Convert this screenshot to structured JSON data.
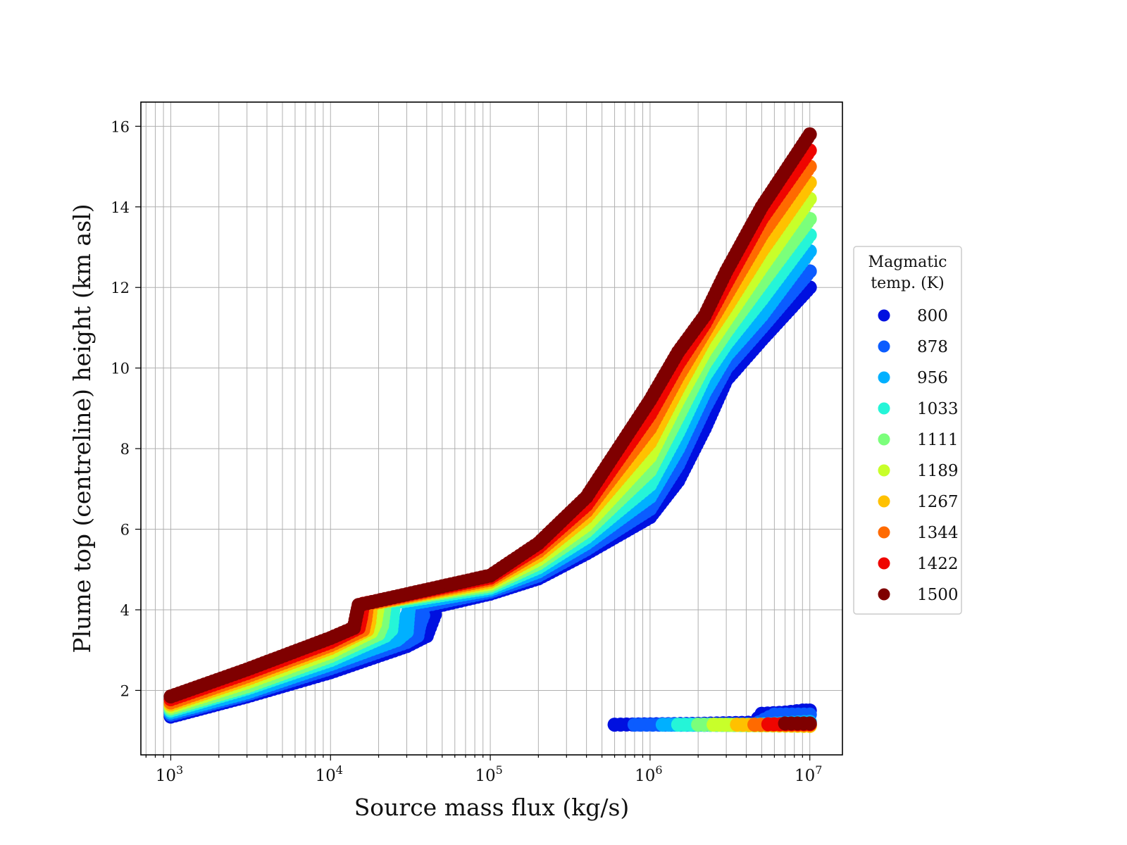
{
  "chart_data": {
    "type": "scatter",
    "title": "",
    "xlabel": "Source mass flux (kg/s)",
    "ylabel": "Plume top (centreline) height (km asl)",
    "xscale": "log",
    "xlim": [
      650,
      16000000
    ],
    "ylim": [
      0.4,
      16.6
    ],
    "x_ticks": [
      {
        "value": 1000,
        "base": "10",
        "exp": "3"
      },
      {
        "value": 10000,
        "base": "10",
        "exp": "4"
      },
      {
        "value": 100000,
        "base": "10",
        "exp": "5"
      },
      {
        "value": 1000000,
        "base": "10",
        "exp": "6"
      },
      {
        "value": 10000000,
        "base": "10",
        "exp": "7"
      }
    ],
    "y_ticks": [
      2,
      4,
      6,
      8,
      10,
      12,
      14,
      16
    ],
    "grid": true,
    "legend": {
      "title_lines": [
        "Magmatic",
        "temp. (K)"
      ],
      "placement": "outside-right"
    },
    "series": [
      {
        "name": "800",
        "color": "#0010e0",
        "main": [
          [
            1000,
            1.35
          ],
          [
            3000,
            1.85
          ],
          [
            10000,
            2.45
          ],
          [
            30000,
            3.1
          ],
          [
            40000,
            3.35
          ],
          [
            45000,
            4.08
          ],
          [
            100000,
            4.4
          ],
          [
            200000,
            4.78
          ],
          [
            400000,
            5.4
          ],
          [
            1000000,
            6.3
          ],
          [
            1500000,
            7.2
          ],
          [
            2200000,
            8.5
          ],
          [
            3000000,
            9.7
          ],
          [
            5000000,
            10.7
          ],
          [
            10000000,
            12.0
          ]
        ],
        "branches": [
          {
            "points": [
              [
                40000,
                3.35
              ],
              [
                45000,
                3.88
              ]
            ]
          }
        ],
        "lower": [
          [
            600000,
            1.15
          ],
          [
            2000000,
            1.17
          ],
          [
            4500000,
            1.2
          ],
          [
            5000000,
            1.42
          ],
          [
            7000000,
            1.45
          ],
          [
            9000000,
            1.5
          ],
          [
            10000000,
            1.5
          ]
        ]
      },
      {
        "name": "878",
        "color": "#0b5cff",
        "main": [
          [
            1000,
            1.4
          ],
          [
            3000,
            1.9
          ],
          [
            10000,
            2.55
          ],
          [
            30000,
            3.2
          ],
          [
            35000,
            3.35
          ],
          [
            38000,
            4.1
          ],
          [
            100000,
            4.45
          ],
          [
            200000,
            4.85
          ],
          [
            400000,
            5.5
          ],
          [
            1000000,
            6.5
          ],
          [
            1500000,
            7.6
          ],
          [
            2200000,
            9.0
          ],
          [
            3000000,
            10.0
          ],
          [
            5000000,
            11.0
          ],
          [
            10000000,
            12.4
          ]
        ],
        "branches": [
          {
            "points": [
              [
                34000,
                3.35
              ],
              [
                38000,
                3.86
              ]
            ]
          }
        ],
        "lower": [
          [
            800000,
            1.15
          ],
          [
            2500000,
            1.15
          ],
          [
            4500000,
            1.15
          ],
          [
            6000000,
            1.4
          ],
          [
            10000000,
            1.4
          ]
        ]
      },
      {
        "name": "956",
        "color": "#00b0ff",
        "main": [
          [
            1000,
            1.45
          ],
          [
            3000,
            1.95
          ],
          [
            10000,
            2.65
          ],
          [
            26000,
            3.25
          ],
          [
            30000,
            3.45
          ],
          [
            31000,
            4.15
          ],
          [
            100000,
            4.5
          ],
          [
            200000,
            4.95
          ],
          [
            400000,
            5.65
          ],
          [
            1000000,
            6.8
          ],
          [
            1500000,
            8.0
          ],
          [
            2200000,
            9.4
          ],
          [
            3000000,
            10.3
          ],
          [
            5000000,
            11.3
          ],
          [
            10000000,
            12.9
          ]
        ],
        "branches": [
          {
            "points": [
              [
                27000,
                3.3
              ],
              [
                30000,
                3.86
              ]
            ]
          }
        ],
        "lower": [
          [
            1200000,
            1.15
          ],
          [
            4000000,
            1.14
          ],
          [
            10000000,
            1.22
          ]
        ]
      },
      {
        "name": "1033",
        "color": "#25f5d8",
        "main": [
          [
            1000,
            1.5
          ],
          [
            3000,
            2.05
          ],
          [
            10000,
            2.75
          ],
          [
            22000,
            3.35
          ],
          [
            24000,
            3.5
          ],
          [
            25000,
            4.18
          ],
          [
            100000,
            4.55
          ],
          [
            200000,
            5.05
          ],
          [
            400000,
            5.8
          ],
          [
            1000000,
            7.1
          ],
          [
            1500000,
            8.4
          ],
          [
            2200000,
            9.8
          ],
          [
            3000000,
            10.6
          ],
          [
            5000000,
            11.7
          ],
          [
            10000000,
            13.3
          ]
        ],
        "branches": [],
        "lower": [
          [
            1500000,
            1.15
          ],
          [
            10000000,
            1.15
          ]
        ]
      },
      {
        "name": "1111",
        "color": "#7bff7b",
        "main": [
          [
            1000,
            1.55
          ],
          [
            3000,
            2.1
          ],
          [
            10000,
            2.85
          ],
          [
            20000,
            3.4
          ],
          [
            21000,
            3.6
          ],
          [
            22000,
            4.2
          ],
          [
            100000,
            4.6
          ],
          [
            200000,
            5.15
          ],
          [
            400000,
            5.95
          ],
          [
            1000000,
            7.45
          ],
          [
            1500000,
            8.8
          ],
          [
            2200000,
            10.1
          ],
          [
            3000000,
            10.9
          ],
          [
            5000000,
            12.1
          ],
          [
            10000000,
            13.7
          ]
        ],
        "branches": [],
        "lower": [
          [
            2000000,
            1.15
          ],
          [
            10000000,
            1.12
          ]
        ]
      },
      {
        "name": "1189",
        "color": "#c8ff2a",
        "main": [
          [
            1000,
            1.6
          ],
          [
            3000,
            2.2
          ],
          [
            10000,
            2.95
          ],
          [
            18000,
            3.45
          ],
          [
            19000,
            3.65
          ],
          [
            20000,
            4.2
          ],
          [
            100000,
            4.65
          ],
          [
            200000,
            5.25
          ],
          [
            400000,
            6.1
          ],
          [
            1000000,
            7.8
          ],
          [
            1500000,
            9.2
          ],
          [
            2200000,
            10.4
          ],
          [
            3000000,
            11.2
          ],
          [
            5000000,
            12.5
          ],
          [
            10000000,
            14.2
          ]
        ],
        "branches": [],
        "lower": [
          [
            2500000,
            1.15
          ],
          [
            10000000,
            1.12
          ]
        ]
      },
      {
        "name": "1267",
        "color": "#ffc100",
        "main": [
          [
            1000,
            1.65
          ],
          [
            3000,
            2.28
          ],
          [
            10000,
            3.05
          ],
          [
            17000,
            3.5
          ],
          [
            17500,
            3.7
          ],
          [
            18000,
            4.15
          ],
          [
            100000,
            4.7
          ],
          [
            200000,
            5.35
          ],
          [
            400000,
            6.3
          ],
          [
            1000000,
            8.15
          ],
          [
            1500000,
            9.5
          ],
          [
            2200000,
            10.7
          ],
          [
            3000000,
            11.5
          ],
          [
            5000000,
            12.9
          ],
          [
            10000000,
            14.6
          ]
        ],
        "branches": [],
        "lower": [
          [
            3500000,
            1.15
          ],
          [
            10000000,
            1.12
          ]
        ]
      },
      {
        "name": "1344",
        "color": "#ff6a00",
        "main": [
          [
            1000,
            1.7
          ],
          [
            3000,
            2.35
          ],
          [
            10000,
            3.12
          ],
          [
            16000,
            3.5
          ],
          [
            16500,
            3.75
          ],
          [
            17000,
            4.15
          ],
          [
            100000,
            4.75
          ],
          [
            200000,
            5.45
          ],
          [
            400000,
            6.45
          ],
          [
            1000000,
            8.5
          ],
          [
            1500000,
            9.8
          ],
          [
            2200000,
            10.9
          ],
          [
            3000000,
            11.8
          ],
          [
            5000000,
            13.3
          ],
          [
            10000000,
            15.0
          ]
        ],
        "branches": [],
        "lower": [
          [
            4500000,
            1.15
          ],
          [
            10000000,
            1.15
          ]
        ]
      },
      {
        "name": "1422",
        "color": "#ef0500",
        "main": [
          [
            1000,
            1.78
          ],
          [
            3000,
            2.43
          ],
          [
            10000,
            3.2
          ],
          [
            15000,
            3.55
          ],
          [
            15500,
            3.8
          ],
          [
            16000,
            4.15
          ],
          [
            100000,
            4.8
          ],
          [
            200000,
            5.55
          ],
          [
            400000,
            6.6
          ],
          [
            1000000,
            8.85
          ],
          [
            1500000,
            10.1
          ],
          [
            2200000,
            11.1
          ],
          [
            3000000,
            12.1
          ],
          [
            5000000,
            13.7
          ],
          [
            10000000,
            15.4
          ]
        ],
        "branches": [],
        "lower": [
          [
            5500000,
            1.16
          ],
          [
            10000000,
            1.16
          ]
        ]
      },
      {
        "name": "1500",
        "color": "#7f0000",
        "main": [
          [
            1000,
            1.85
          ],
          [
            3000,
            2.52
          ],
          [
            10000,
            3.3
          ],
          [
            14000,
            3.55
          ],
          [
            14500,
            3.85
          ],
          [
            15000,
            4.12
          ],
          [
            100000,
            4.85
          ],
          [
            200000,
            5.65
          ],
          [
            400000,
            6.8
          ],
          [
            1000000,
            9.2
          ],
          [
            1500000,
            10.4
          ],
          [
            2200000,
            11.3
          ],
          [
            3000000,
            12.4
          ],
          [
            5000000,
            14.0
          ],
          [
            10000000,
            15.8
          ]
        ],
        "branches": [],
        "lower": [
          [
            7000000,
            1.18
          ],
          [
            10000000,
            1.18
          ]
        ]
      }
    ]
  }
}
